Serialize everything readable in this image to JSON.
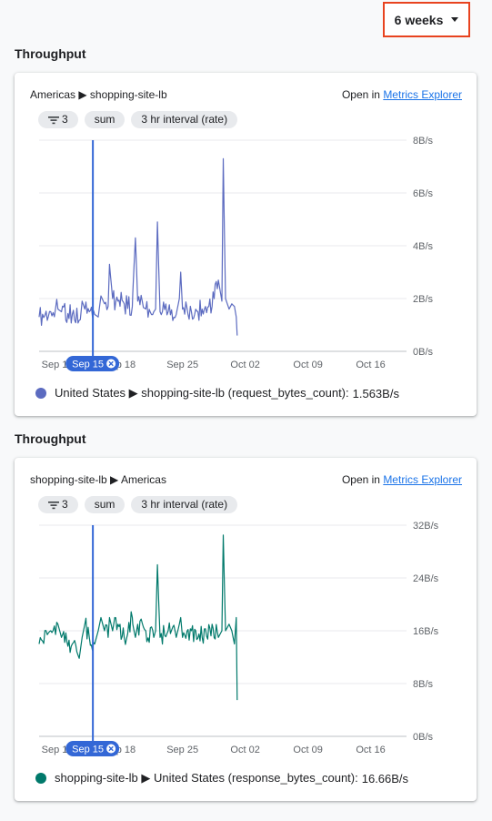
{
  "time_range": {
    "label": "6 weeks"
  },
  "panels": [
    {
      "title": "Throughput",
      "breadcrumb": "Americas ▶ shopping-site-lb",
      "open_in_prefix": "Open in",
      "open_in_link": "Metrics Explorer",
      "chips": {
        "filter_count": "3",
        "aggregation": "sum",
        "interval": "3 hr interval (rate)"
      },
      "legend": {
        "label": "United States ▶ shopping-site-lb (request_bytes_count):",
        "value": "1.563B/s"
      },
      "color": "#5c6bc0"
    },
    {
      "title": "Throughput",
      "breadcrumb": "shopping-site-lb ▶ Americas",
      "open_in_prefix": "Open in",
      "open_in_link": "Metrics Explorer",
      "chips": {
        "filter_count": "3",
        "aggregation": "sum",
        "interval": "3 hr interval (rate)"
      },
      "legend": {
        "label": "shopping-site-lb ▶ United States (response_bytes_count):",
        "value": "16.66B/s"
      },
      "color": "#00796b"
    }
  ],
  "chart_data": [
    {
      "type": "line",
      "series": [
        {
          "name": "United States ▶ shopping-site-lb (request_bytes_count)",
          "color": "#5c6bc0",
          "points": [
            [
              0,
              1.3
            ],
            [
              1.3,
              1.5
            ],
            [
              2.1,
              1.6
            ],
            [
              2.5,
              1.5
            ],
            [
              3.7,
              1.4
            ],
            [
              4.6,
              1.2
            ],
            [
              4.8,
              1.9
            ],
            [
              5.1,
              1.6
            ],
            [
              5.6,
              1.5
            ],
            [
              6.2,
              1.4
            ],
            [
              6.6,
              1.3
            ],
            [
              6.9,
              2.1
            ],
            [
              7.3,
              1.8
            ],
            [
              7.7,
              1.7
            ],
            [
              7.85,
              3.3
            ],
            [
              8.2,
              2.0
            ],
            [
              8.8,
              1.9
            ],
            [
              9.5,
              1.8
            ],
            [
              10.4,
              1.7
            ],
            [
              10.45,
              2.2
            ],
            [
              10.75,
              4.3
            ],
            [
              11.0,
              1.9
            ],
            [
              11.9,
              1.6
            ],
            [
              12.8,
              1.5
            ],
            [
              13.0,
              1.6
            ],
            [
              13.2,
              4.9
            ],
            [
              13.5,
              1.5
            ],
            [
              14.4,
              1.5
            ],
            [
              15.3,
              1.4
            ],
            [
              15.65,
              2.0
            ],
            [
              15.8,
              3.0
            ],
            [
              16.0,
              1.6
            ],
            [
              17.0,
              1.5
            ],
            [
              18.2,
              1.6
            ],
            [
              19.3,
              1.7
            ],
            [
              20.0,
              2.7
            ],
            [
              20.4,
              1.9
            ],
            [
              20.55,
              7.3
            ],
            [
              20.8,
              2.0
            ],
            [
              21.2,
              1.6
            ],
            [
              21.5,
              1.8
            ],
            [
              21.8,
              1.7
            ],
            [
              22.0,
              1.3
            ],
            [
              22.1,
              0.6
            ]
          ]
        }
      ],
      "x_start": "2023-09-09",
      "x_ticks": [
        "Sep 11",
        "Sep 18",
        "Sep 25",
        "Oct 02",
        "Oct 09",
        "Oct 16"
      ],
      "y_ticks": [
        "0B/s",
        "2B/s",
        "4B/s",
        "6B/s",
        "8B/s"
      ],
      "ylim": [
        0,
        8
      ],
      "cursor": {
        "label": "Sep 15"
      },
      "grid": true
    },
    {
      "type": "line",
      "series": [
        {
          "name": "shopping-site-lb ▶ United States (response_bytes_count)",
          "color": "#00796b",
          "points": [
            [
              0,
              14
            ],
            [
              1.3,
              16
            ],
            [
              2.1,
              17
            ],
            [
              2.5,
              15
            ],
            [
              3.7,
              14
            ],
            [
              4.6,
              13
            ],
            [
              4.8,
              15
            ],
            [
              5.1,
              17
            ],
            [
              5.6,
              15
            ],
            [
              6.2,
              14
            ],
            [
              6.6,
              16
            ],
            [
              6.9,
              18
            ],
            [
              7.3,
              16
            ],
            [
              7.7,
              15
            ],
            [
              7.85,
              18
            ],
            [
              8.2,
              16
            ],
            [
              8.8,
              17
            ],
            [
              9.5,
              15
            ],
            [
              10.4,
              18
            ],
            [
              10.45,
              17
            ],
            [
              10.75,
              15
            ],
            [
              11.0,
              17
            ],
            [
              11.9,
              16
            ],
            [
              12.8,
              15
            ],
            [
              13.0,
              16
            ],
            [
              13.2,
              26
            ],
            [
              13.5,
              15
            ],
            [
              14.4,
              16
            ],
            [
              15.3,
              15
            ],
            [
              15.65,
              17
            ],
            [
              15.8,
              18
            ],
            [
              16.0,
              15
            ],
            [
              17.0,
              16
            ],
            [
              18.2,
              15
            ],
            [
              19.3,
              17
            ],
            [
              20.0,
              15
            ],
            [
              20.4,
              16
            ],
            [
              20.55,
              30.5
            ],
            [
              20.8,
              16
            ],
            [
              21.2,
              17
            ],
            [
              21.5,
              16
            ],
            [
              21.8,
              14
            ],
            [
              22.0,
              18
            ],
            [
              22.1,
              5.5
            ]
          ]
        }
      ],
      "x_start": "2023-09-09",
      "x_ticks": [
        "Sep 11",
        "Sep 18",
        "Sep 25",
        "Oct 02",
        "Oct 09",
        "Oct 16"
      ],
      "y_ticks": [
        "0B/s",
        "8B/s",
        "16B/s",
        "24B/s",
        "32B/s"
      ],
      "ylim": [
        0,
        32
      ],
      "cursor": {
        "label": "Sep 15"
      },
      "grid": true
    }
  ]
}
